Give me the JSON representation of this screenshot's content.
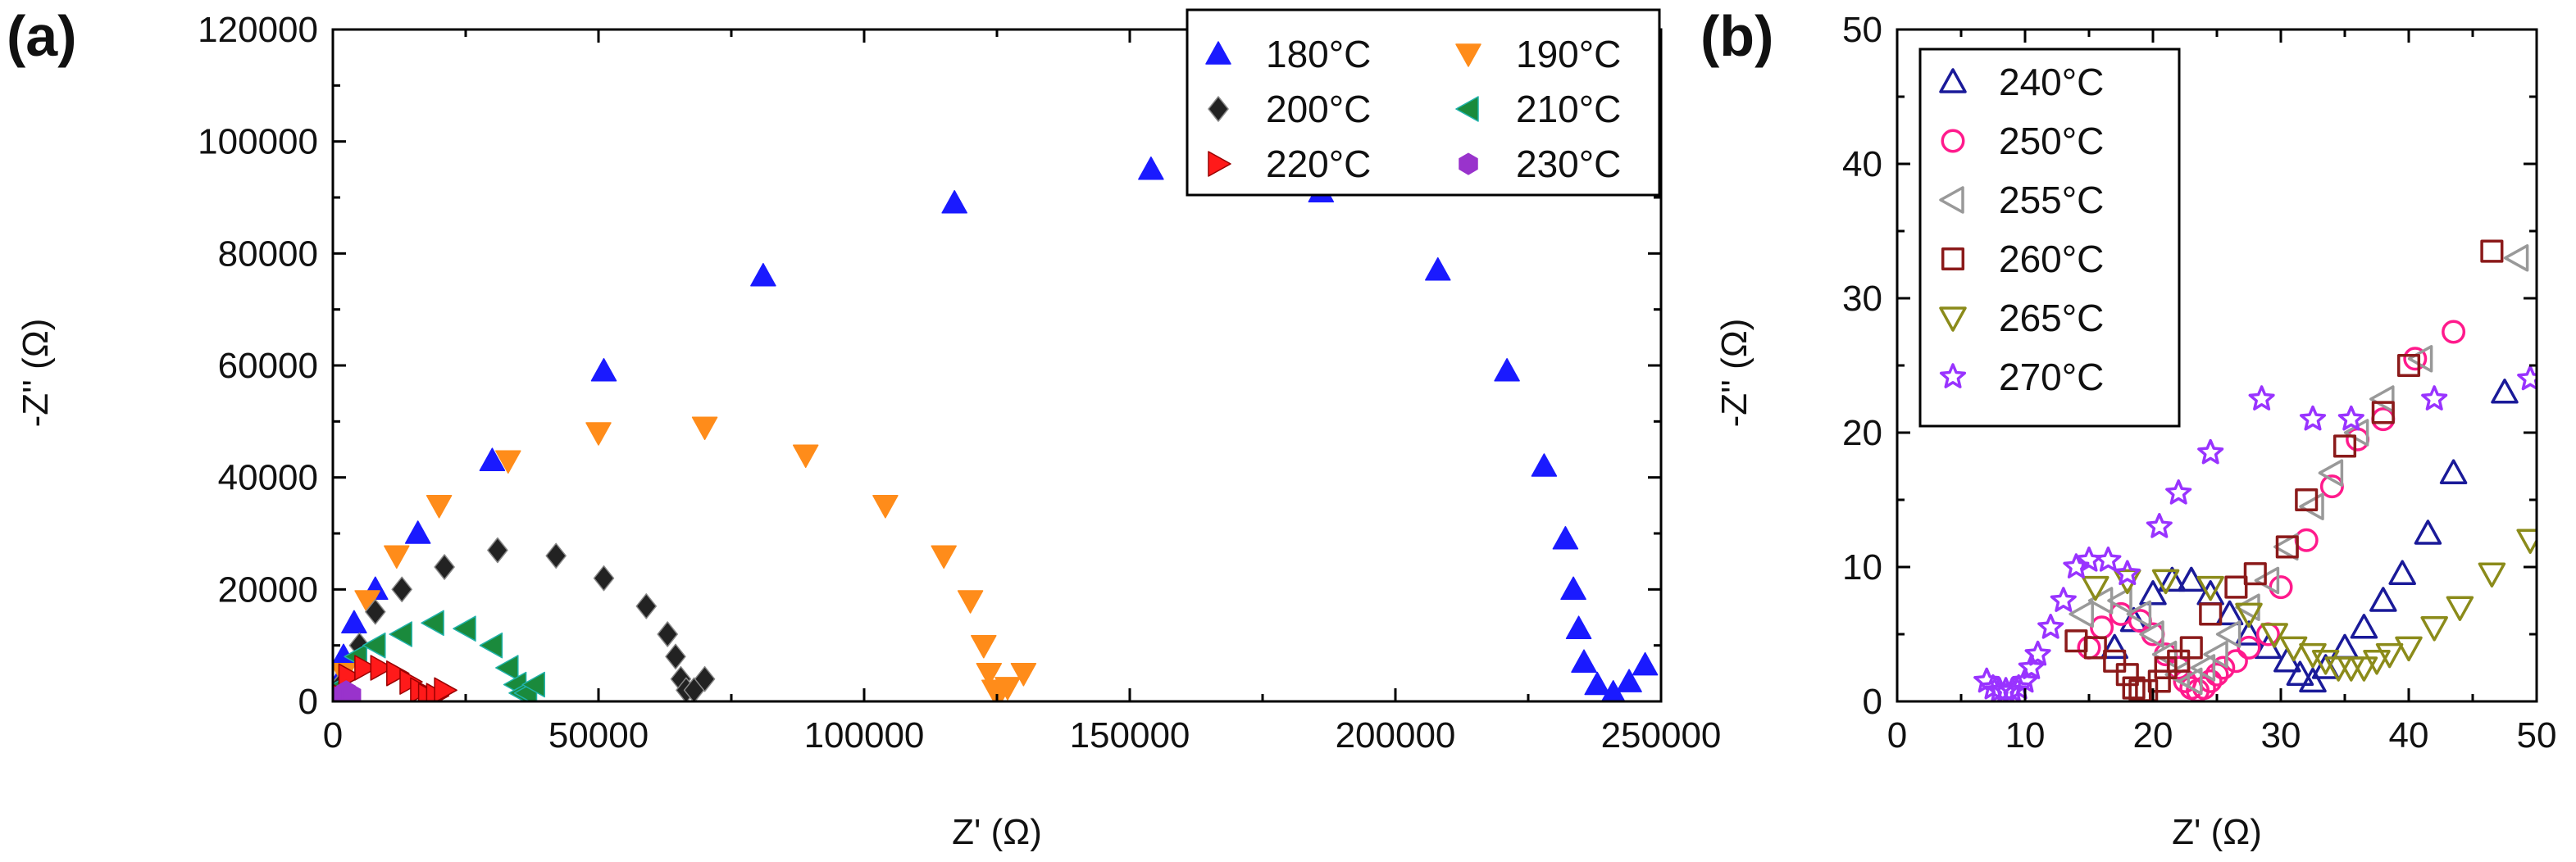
{
  "chart_data": [
    {
      "panel": "(a)",
      "type": "scatter",
      "title": "",
      "xlabel": "Z' (Ω)",
      "ylabel": "-Z'' (Ω)",
      "xlim": [
        0,
        250000
      ],
      "ylim": [
        0,
        120000
      ],
      "x_ticks": [
        0,
        50000,
        100000,
        150000,
        200000,
        250000
      ],
      "y_ticks": [
        0,
        20000,
        40000,
        60000,
        80000,
        100000,
        120000
      ],
      "grid": false,
      "legend_position": "top-right",
      "legend_columns": 2,
      "series": [
        {
          "name": "180°C",
          "marker": "triangle-up",
          "color": "#1a1aff",
          "x": [
            800,
            2000,
            4000,
            8000,
            16000,
            30000,
            51000,
            81000,
            117000,
            154000,
            186000,
            208000,
            221000,
            228000,
            232000,
            233500,
            234500,
            235500,
            238000,
            241000,
            244000,
            247000
          ],
          "y": [
            3000,
            8000,
            14000,
            20000,
            30000,
            43000,
            59000,
            76000,
            89000,
            95000,
            91000,
            77000,
            59000,
            42000,
            29000,
            20000,
            13000,
            7000,
            3000,
            1500,
            3500,
            6500
          ]
        },
        {
          "name": "190°C",
          "marker": "triangle-down",
          "color": "#ff8c1a",
          "x": [
            2000,
            6500,
            12000,
            20000,
            33000,
            50000,
            70000,
            89000,
            104000,
            115000,
            120000,
            122500,
            123500,
            124500,
            125500,
            127000,
            130000
          ],
          "y": [
            5000,
            18000,
            26000,
            35000,
            43000,
            48000,
            49000,
            44000,
            35000,
            26000,
            18000,
            10000,
            5000,
            2000,
            1500,
            2500,
            5000
          ]
        },
        {
          "name": "200°C",
          "marker": "diamond",
          "color": "#222222",
          "x": [
            1500,
            5000,
            8000,
            13000,
            21000,
            31000,
            42000,
            51000,
            59000,
            63000,
            64500,
            65500,
            66500,
            68000,
            70000
          ],
          "y": [
            3000,
            10000,
            16000,
            20000,
            24000,
            27000,
            26000,
            22000,
            17000,
            12000,
            8000,
            4000,
            2000,
            2000,
            4000
          ],
          "edge_color": "#888888"
        },
        {
          "name": "210°C",
          "marker": "triangle-left",
          "color": "#1a8a3c",
          "x": [
            1200,
            4500,
            8000,
            13000,
            19000,
            25000,
            30000,
            33000,
            34500,
            35500,
            36500,
            38000
          ],
          "y": [
            2500,
            8000,
            10000,
            12000,
            14000,
            13000,
            10000,
            6000,
            3000,
            1500,
            1500,
            3000
          ],
          "edge_color": "#20b2aa"
        },
        {
          "name": "220°C",
          "marker": "triangle-right",
          "color": "#ff1a1a",
          "x": [
            600,
            3000,
            6000,
            9000,
            12000,
            14500,
            16500,
            18000,
            19500,
            21000
          ],
          "y": [
            1500,
            4500,
            6000,
            6000,
            5000,
            3500,
            2000,
            1000,
            1000,
            2000
          ],
          "edge_color": "#990000"
        },
        {
          "name": "230°C",
          "marker": "hexagon",
          "color": "#9933cc",
          "x": [
            1500,
            2500,
            3500
          ],
          "y": [
            1200,
            1800,
            1200
          ]
        }
      ]
    },
    {
      "panel": "(b)",
      "type": "scatter",
      "title": "",
      "xlabel": "Z' (Ω)",
      "ylabel": "-Z'' (Ω)",
      "xlim": [
        0,
        50
      ],
      "ylim": [
        0,
        50
      ],
      "x_ticks": [
        0,
        10,
        20,
        30,
        40,
        50
      ],
      "y_ticks": [
        0,
        10,
        20,
        30,
        40,
        50
      ],
      "grid": false,
      "legend_position": "top-left",
      "legend_columns": 1,
      "series": [
        {
          "name": "240°C",
          "marker": "triangle-up-open",
          "color": "#1a1a99",
          "x": [
            17,
            18.5,
            20,
            21.5,
            23,
            24.5,
            26,
            27.5,
            29,
            30.5,
            31.5,
            32.5,
            33.5,
            35,
            36.5,
            38,
            39.5,
            41.5,
            43.5,
            47.5
          ],
          "y": [
            4,
            6,
            8,
            9,
            9,
            8,
            6.5,
            5,
            4,
            3,
            2,
            1.5,
            2.5,
            4,
            5.5,
            7.5,
            9.5,
            12.5,
            17,
            23
          ]
        },
        {
          "name": "250°C",
          "marker": "circle-open",
          "color": "#ff1a8c",
          "x": [
            15,
            16,
            17.5,
            19,
            20,
            21,
            22,
            22.5,
            23,
            23.5,
            24,
            24.5,
            25,
            25.5,
            26.5,
            27.5,
            29,
            30,
            32,
            34,
            36,
            38,
            40.5,
            43.5
          ],
          "y": [
            4,
            5.5,
            6.5,
            6,
            5,
            3.5,
            2.5,
            1.5,
            1,
            0.8,
            1,
            1.5,
            2,
            2.5,
            3,
            4,
            5,
            8.5,
            12,
            16,
            19.5,
            21,
            25.5,
            27.5
          ]
        },
        {
          "name": "255°C",
          "marker": "triangle-left-open",
          "color": "#999999",
          "x": [
            14.5,
            16,
            17.5,
            19,
            20,
            21,
            22,
            23,
            24,
            25,
            26,
            27.5,
            29,
            30.5,
            32.5,
            34,
            36,
            38,
            41,
            48.5
          ],
          "y": [
            6.5,
            7.5,
            7.5,
            6.5,
            5,
            3.5,
            2,
            1.5,
            2.5,
            3.5,
            5,
            7,
            9,
            11.5,
            14.5,
            17,
            20,
            22.5,
            25.5,
            33
          ]
        },
        {
          "name": "260°C",
          "marker": "square-open",
          "color": "#8b1a1a",
          "x": [
            14,
            15.5,
            17,
            18,
            18.5,
            19,
            19.5,
            20.5,
            21,
            22,
            23,
            24.5,
            26.5,
            28,
            30.5,
            32,
            35,
            38,
            40,
            46.5
          ],
          "y": [
            4.5,
            4,
            3,
            2,
            1,
            0.8,
            0.8,
            1.5,
            2.5,
            3,
            4,
            6.5,
            8.5,
            9.5,
            11.5,
            15,
            19,
            21.5,
            25,
            33.5
          ]
        },
        {
          "name": "265°C",
          "marker": "triangle-down-open",
          "color": "#8b8b1a",
          "x": [
            15.5,
            18,
            21,
            24.5,
            27.5,
            29.5,
            31,
            32.5,
            33.5,
            34.5,
            35.5,
            36.5,
            37.5,
            38.5,
            40,
            42,
            44,
            46.5,
            49.5
          ],
          "y": [
            8.5,
            9,
            9,
            8.5,
            6.5,
            5,
            4,
            3.5,
            3,
            2.5,
            2.5,
            2.5,
            3,
            3.5,
            4,
            5.5,
            7,
            9.5,
            12
          ]
        },
        {
          "name": "270°C",
          "marker": "star-open",
          "color": "#9933ff",
          "x": [
            7,
            7.5,
            8,
            8.5,
            9,
            9.5,
            10,
            10.5,
            11,
            12,
            13,
            14,
            15,
            16.5,
            18,
            20.5,
            22,
            24.5,
            28.5,
            32.5,
            35.5,
            42,
            49.5
          ],
          "y": [
            1.5,
            1,
            0.8,
            0.8,
            0.8,
            1,
            1.5,
            2.5,
            3.5,
            5.5,
            7.5,
            10,
            10.5,
            10.5,
            9.5,
            13,
            15.5,
            18.5,
            22.5,
            21,
            21,
            22.5,
            24
          ]
        }
      ]
    }
  ]
}
